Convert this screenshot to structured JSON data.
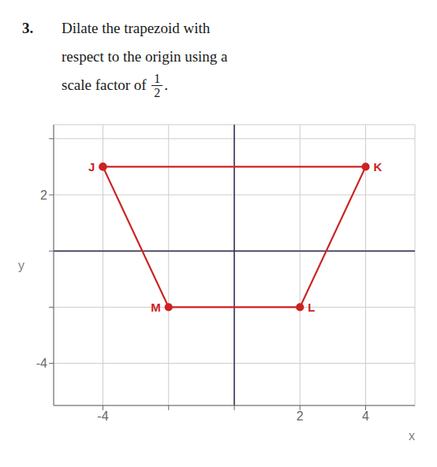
{
  "chart_data": {
    "type": "line",
    "title": {
      "number": "3.",
      "lines": [
        "Dilate the trapezoid with",
        "respect to the origin using a",
        "scale factor of "
      ],
      "fraction": [
        "1",
        "2"
      ],
      "end": "."
    },
    "x": [
      -4,
      4,
      2,
      -2,
      -4
    ],
    "series": [
      {
        "name": "JKLM",
        "color": "#cc2222",
        "marker": "circle",
        "line_style": "solid",
        "values": [
          3,
          3,
          -2,
          -2,
          3
        ]
      }
    ],
    "annotations": [
      {
        "text": "J",
        "x": -4,
        "y": 3
      },
      {
        "text": "K",
        "x": 4,
        "y": 3
      },
      {
        "text": "L",
        "x": 2,
        "y": -2
      },
      {
        "text": "M",
        "x": -2,
        "y": -2
      }
    ],
    "xlabel": "x",
    "ylabel": "y",
    "xlim": [
      -5.5,
      5.5
    ],
    "ylim": [
      -5.5,
      4.5
    ],
    "xticks": [
      {
        "value": -4,
        "label": "-4"
      },
      {
        "value": -2,
        "label": null
      },
      {
        "value": 0,
        "label": null
      },
      2,
      4
    ],
    "yticks": [
      {
        "value": -4,
        "label": "-4"
      },
      {
        "value": -2,
        "label": null
      },
      {
        "value": 0,
        "label": null
      },
      2,
      {
        "value": 4,
        "label": null
      }
    ],
    "grid": true
  }
}
